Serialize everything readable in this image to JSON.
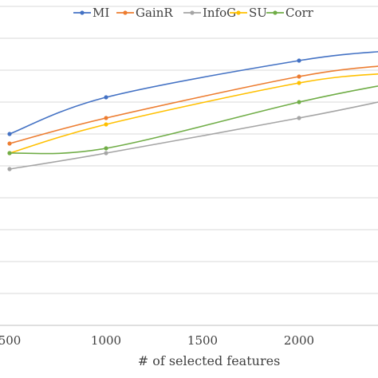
{
  "chart_data": {
    "type": "line",
    "xlabel": "# of selected features",
    "ylabel": "",
    "x_ticks": [
      500,
      1000,
      1500,
      2000
    ],
    "xlim": [
      500,
      2450
    ],
    "ylim": [
      0,
      100
    ],
    "grid": true,
    "legend_position": "top",
    "series": [
      {
        "name": "MI",
        "color": "#4472C4",
        "x": [
          500,
          1000,
          2000,
          2450
        ],
        "values": [
          60.0,
          71.5,
          83.0,
          86.0
        ]
      },
      {
        "name": "GainR",
        "color": "#ED7D31",
        "x": [
          500,
          1000,
          2000,
          2450
        ],
        "values": [
          57.0,
          65.0,
          78.0,
          81.5
        ]
      },
      {
        "name": "InfoG",
        "color": "#A5A5A5",
        "x": [
          500,
          1000,
          2000,
          2450
        ],
        "values": [
          49.0,
          54.0,
          65.0,
          70.5
        ]
      },
      {
        "name": "SU",
        "color": "#FFC000",
        "x": [
          500,
          1000,
          2000,
          2450
        ],
        "values": [
          54.0,
          63.0,
          76.0,
          79.0
        ]
      },
      {
        "name": "Corr",
        "color": "#70AD47",
        "x": [
          500,
          1000,
          2000,
          2450
        ],
        "values": [
          54.0,
          55.5,
          70.0,
          75.5
        ]
      }
    ]
  }
}
